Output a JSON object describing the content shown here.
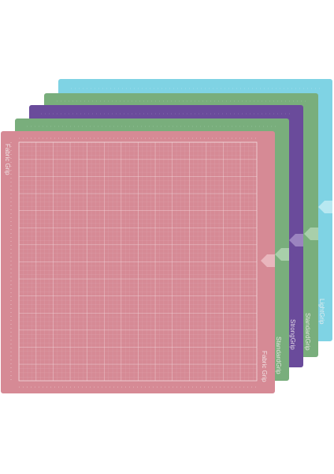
{
  "mats": [
    {
      "label": "LightGrip"
    },
    {
      "label": "StandardGrip"
    },
    {
      "label": "StrongGrip"
    },
    {
      "label": "StandardGrip"
    },
    {
      "label": "Fabric Grip"
    }
  ]
}
